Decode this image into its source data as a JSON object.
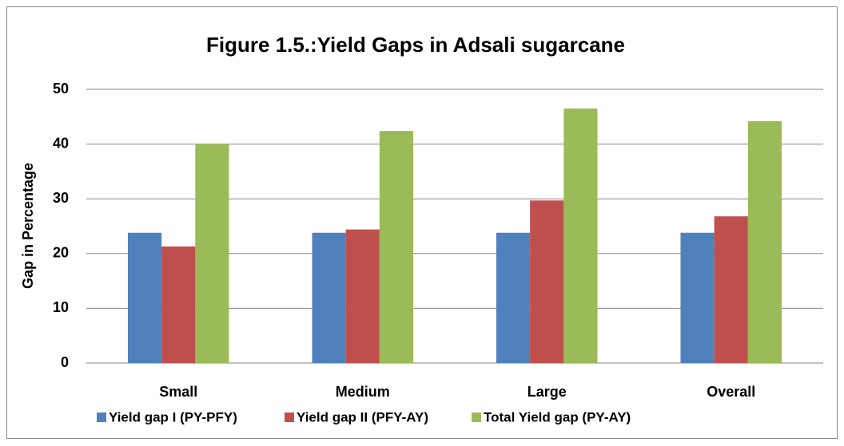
{
  "chart_data": {
    "type": "bar",
    "title": "Figure 1.5.:Yield Gaps in Adsali sugarcane",
    "y_label": "Gap in Percentage",
    "categories": [
      "Small",
      "Medium",
      "Large",
      "Overall"
    ],
    "series": [
      {
        "name": "Yield gap I (PY-PFY)",
        "color": "#4f81bd",
        "values": [
          23.8,
          23.8,
          23.8,
          23.8
        ]
      },
      {
        "name": "Yield gap II (PFY-AY)",
        "color": "#c0504d",
        "values": [
          21.3,
          24.4,
          29.7,
          26.8
        ]
      },
      {
        "name": "Total Yield gap (PY-AY)",
        "color": "#9bbb59",
        "values": [
          40.1,
          42.4,
          46.5,
          44.2
        ]
      }
    ],
    "ylim": [
      0,
      50
    ],
    "yticks": [
      0,
      10,
      20,
      30,
      40,
      50
    ],
    "grid": true,
    "legend": "bottom"
  }
}
